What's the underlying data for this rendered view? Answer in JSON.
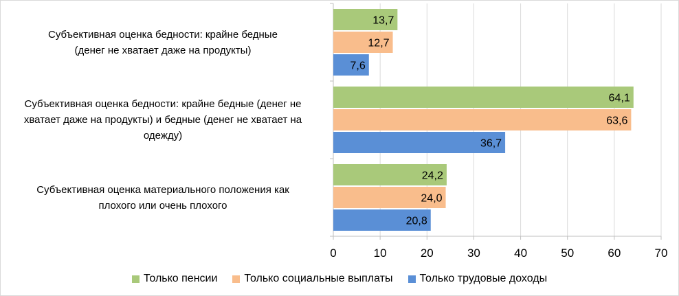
{
  "chart_data": {
    "type": "bar",
    "orientation": "horizontal",
    "categories": [
      "Субъективная оценка бедности: крайне бедные (денег не хватает даже на продукты)",
      "Субъективная оценка бедности: крайне бедные (денег не хватает даже на продукты) и бедные (денег не хватает на одежду)",
      "Субъективная оценка материального положения как плохого или очень плохого"
    ],
    "category_lines": [
      [
        "Субъективная оценка бедности: крайне бедные",
        "(денег не хватает даже на продукты)"
      ],
      [
        "Субъективная оценка бедности: крайне бедные (денег не",
        "хватает даже на продукты) и бедные (денег не хватает на",
        "одежду)"
      ],
      [
        "Субъективная оценка материального положения как",
        "плохого или очень плохого"
      ]
    ],
    "series": [
      {
        "name": "Только пенсии",
        "color": "#a9c97a",
        "values": [
          13.7,
          64.1,
          24.2
        ],
        "labels": [
          "13,7",
          "64,1",
          "24,2"
        ]
      },
      {
        "name": "Только социальные выплаты",
        "color": "#f9bd8c",
        "values": [
          12.7,
          63.6,
          24.0
        ],
        "labels": [
          "12,7",
          "63,6",
          "24,0"
        ]
      },
      {
        "name": "Только трудовые доходы",
        "color": "#5a8fd6",
        "values": [
          7.6,
          36.7,
          20.8
        ],
        "labels": [
          "7,6",
          "36,7",
          "20,8"
        ]
      }
    ],
    "xlim": [
      0,
      70
    ],
    "xticks": [
      0,
      10,
      20,
      30,
      40,
      50,
      60,
      70
    ],
    "grid": true,
    "legend_position": "bottom"
  }
}
